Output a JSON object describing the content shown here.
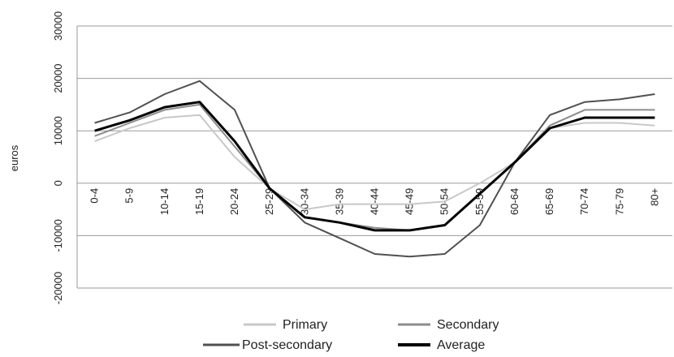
{
  "chart_data": {
    "type": "line",
    "y_label": "euros",
    "categories": [
      "0-4",
      "5-9",
      "10-14",
      "15-19",
      "20-24",
      "25-29",
      "30-34",
      "35-39",
      "40-44",
      "45-49",
      "50-54",
      "55-59",
      "60-64",
      "65-69",
      "70-74",
      "75-79",
      "80+"
    ],
    "series": [
      {
        "name": "Primary",
        "color": "#c8c8c8",
        "width": 2,
        "values": [
          8000,
          10500,
          12500,
          13000,
          5000,
          -1000,
          -5000,
          -4000,
          -4000,
          -4000,
          -3500,
          0,
          4000,
          10500,
          11500,
          11500,
          11000
        ]
      },
      {
        "name": "Secondary",
        "color": "#8c8c8c",
        "width": 2,
        "values": [
          9000,
          11500,
          14000,
          15000,
          7000,
          -1000,
          -6500,
          -7500,
          -8500,
          -9000,
          -8000,
          -2000,
          4000,
          11000,
          14000,
          14000,
          14000
        ]
      },
      {
        "name": "Post-secondary",
        "color": "#505050",
        "width": 2,
        "values": [
          11500,
          13500,
          17000,
          19500,
          14000,
          -1000,
          -7500,
          -10500,
          -13500,
          -14000,
          -13500,
          -8000,
          4000,
          13000,
          15500,
          16000,
          17000
        ]
      },
      {
        "name": "Average",
        "color": "#000000",
        "width": 3,
        "values": [
          10000,
          12000,
          14500,
          15500,
          8000,
          -1000,
          -6500,
          -7500,
          -9000,
          -9000,
          -8000,
          -2000,
          4000,
          10500,
          12500,
          12500,
          12500
        ]
      }
    ],
    "ylim": [
      -20000,
      30000
    ],
    "yticks": [
      -20000,
      -10000,
      0,
      10000,
      20000,
      30000
    ],
    "grid": true
  }
}
